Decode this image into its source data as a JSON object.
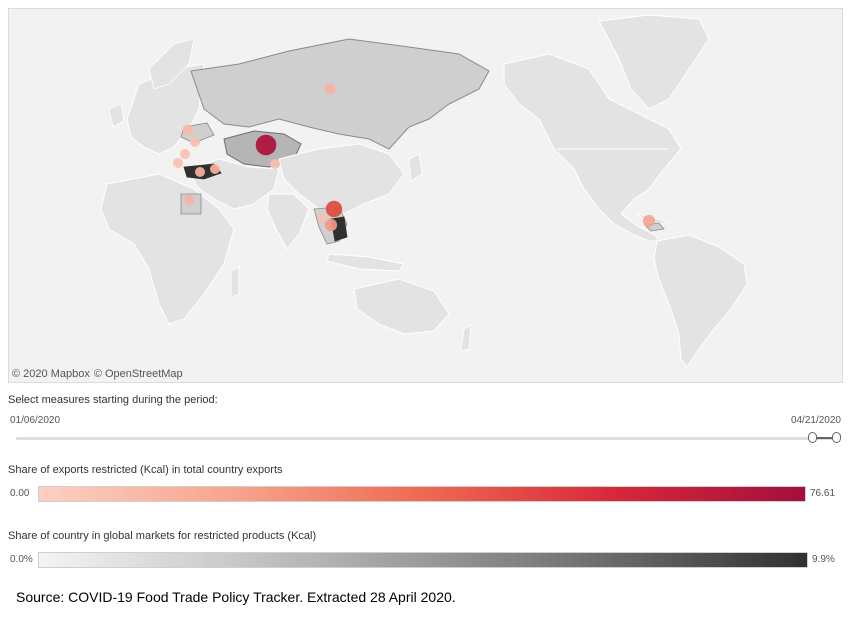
{
  "map": {
    "attribution": {
      "mapbox": "© 2020 Mapbox",
      "osm": "© OpenStreetMap"
    },
    "colors": {
      "ocean": "#f2f2f2",
      "land": "#e3e3e3",
      "land_border": "#ffffff",
      "highlight_fill": "#cfcfcf",
      "highlight_border": "#8a8a8a",
      "dark_fill": "#303030"
    },
    "markers": [
      {
        "name": "Russia",
        "share": 0.2,
        "color": "#f7b3a2"
      },
      {
        "name": "Kazakhstan",
        "share": 0.9,
        "color": "#b0103b"
      },
      {
        "name": "Ukraine",
        "share": 0.2,
        "color": "#f9b9a8"
      },
      {
        "name": "Romania",
        "share": 0.15,
        "color": "#f9c0b0"
      },
      {
        "name": "North Macedonia",
        "share": 0.15,
        "color": "#f9c0b0"
      },
      {
        "name": "Tunisia",
        "share": 0.15,
        "color": "#f9c0b0"
      },
      {
        "name": "Turkey",
        "share": 0.15,
        "color": "#f7b3a2"
      },
      {
        "name": "Syria",
        "share": 0.15,
        "color": "#f7b3a2"
      },
      {
        "name": "Egypt",
        "share": 0.15,
        "color": "#f7b3a2"
      },
      {
        "name": "Kyrgyzstan",
        "share": 0.15,
        "color": "#f9c0b0"
      },
      {
        "name": "Vietnam",
        "share": 0.6,
        "color": "#e04b3d"
      },
      {
        "name": "Cambodia",
        "share": 0.3,
        "color": "#f29a84"
      },
      {
        "name": "Myanmar",
        "share": 0.15,
        "color": "#f9c0b0"
      },
      {
        "name": "Honduras",
        "share": 0.3,
        "color": "#f5a58f"
      }
    ]
  },
  "period_filter": {
    "title": "Select measures starting during the period:",
    "start_date": "01/06/2020",
    "end_date": "04/21/2020"
  },
  "exports_legend": {
    "title": "Share of exports restricted (Kcal) in total country exports",
    "min": "0.00",
    "max": "76.61",
    "gradient_start": "#fdd0c2",
    "gradient_end": "#a30f3d"
  },
  "markets_legend": {
    "title": "Share of country in global markets for restricted products (Kcal)",
    "min": "0.0%",
    "max": "9.9%",
    "gradient_start": "#f4f4f4",
    "gradient_end": "#303030"
  },
  "source": "Source: COVID-19 Food Trade Policy Tracker. Extracted 28 April 2020."
}
